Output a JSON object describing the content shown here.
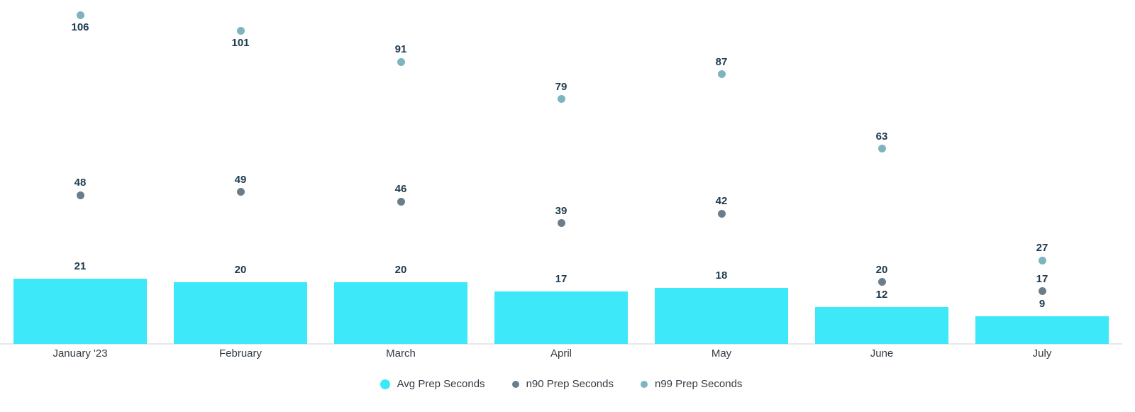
{
  "chart_data": {
    "type": "bar",
    "title": "",
    "xlabel": "",
    "ylabel": "",
    "categories": [
      "January '23",
      "February",
      "March",
      "April",
      "May",
      "June",
      "July"
    ],
    "series": [
      {
        "name": "Avg Prep Seconds",
        "render": "column",
        "color": "#3de8f8",
        "values": [
          21,
          20,
          20,
          17,
          18,
          12,
          9
        ]
      },
      {
        "name": "n90 Prep Seconds",
        "render": "scatter",
        "color": "#6c7d8a",
        "values": [
          48,
          49,
          46,
          39,
          42,
          20,
          17
        ]
      },
      {
        "name": "n99 Prep Seconds",
        "render": "scatter",
        "color": "#7db4be",
        "values": [
          106,
          101,
          91,
          79,
          87,
          63,
          27
        ]
      }
    ],
    "ylim": [
      0,
      111
    ],
    "grid": false,
    "y_axis_visible": false,
    "data_labels": true,
    "legend_position": "bottom-center",
    "style": {
      "background": "#ffffff",
      "data_label_color": "#1d3b50",
      "axis_label_color": "#333b43",
      "axis_line_color": "#e6e6ee"
    }
  }
}
